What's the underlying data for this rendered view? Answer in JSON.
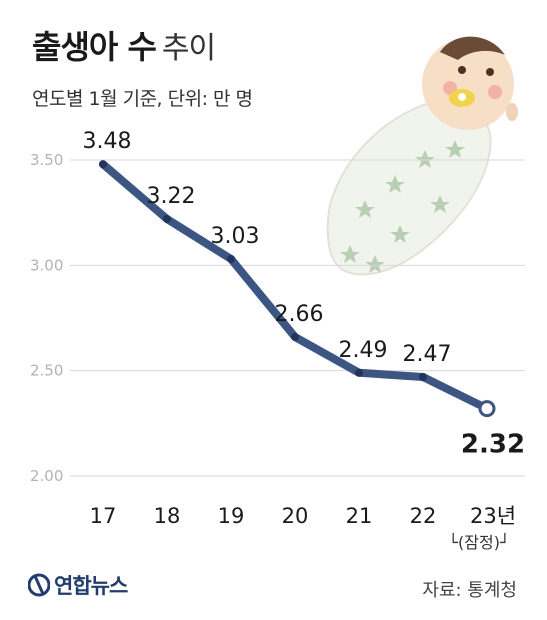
{
  "header": {
    "title_main": "출생아 수",
    "title_sub": "추이",
    "subtitle": "연도별 1월 기준, 단위: 만 명"
  },
  "footer": {
    "source": "자료: 통계청",
    "logo_text": "연합뉴스"
  },
  "colors": {
    "line": "#3b5584",
    "grid": "#d8d8d8",
    "tick_label": "#b3b3b3"
  },
  "chart_data": {
    "type": "line",
    "categories": [
      "17",
      "18",
      "19",
      "20",
      "21",
      "22",
      "23년"
    ],
    "category_note": "└(잠정)┘",
    "values": [
      3.48,
      3.22,
      3.03,
      2.66,
      2.49,
      2.47,
      2.32
    ],
    "value_labels": [
      "3.48",
      "3.22",
      "3.03",
      "2.66",
      "2.49",
      "2.47",
      "2.32"
    ],
    "y_ticks": [
      "3.50",
      "3.00",
      "2.50",
      "2.00"
    ],
    "ylim": [
      2.0,
      3.5
    ],
    "grid": true,
    "last_point_emphasized": true
  }
}
